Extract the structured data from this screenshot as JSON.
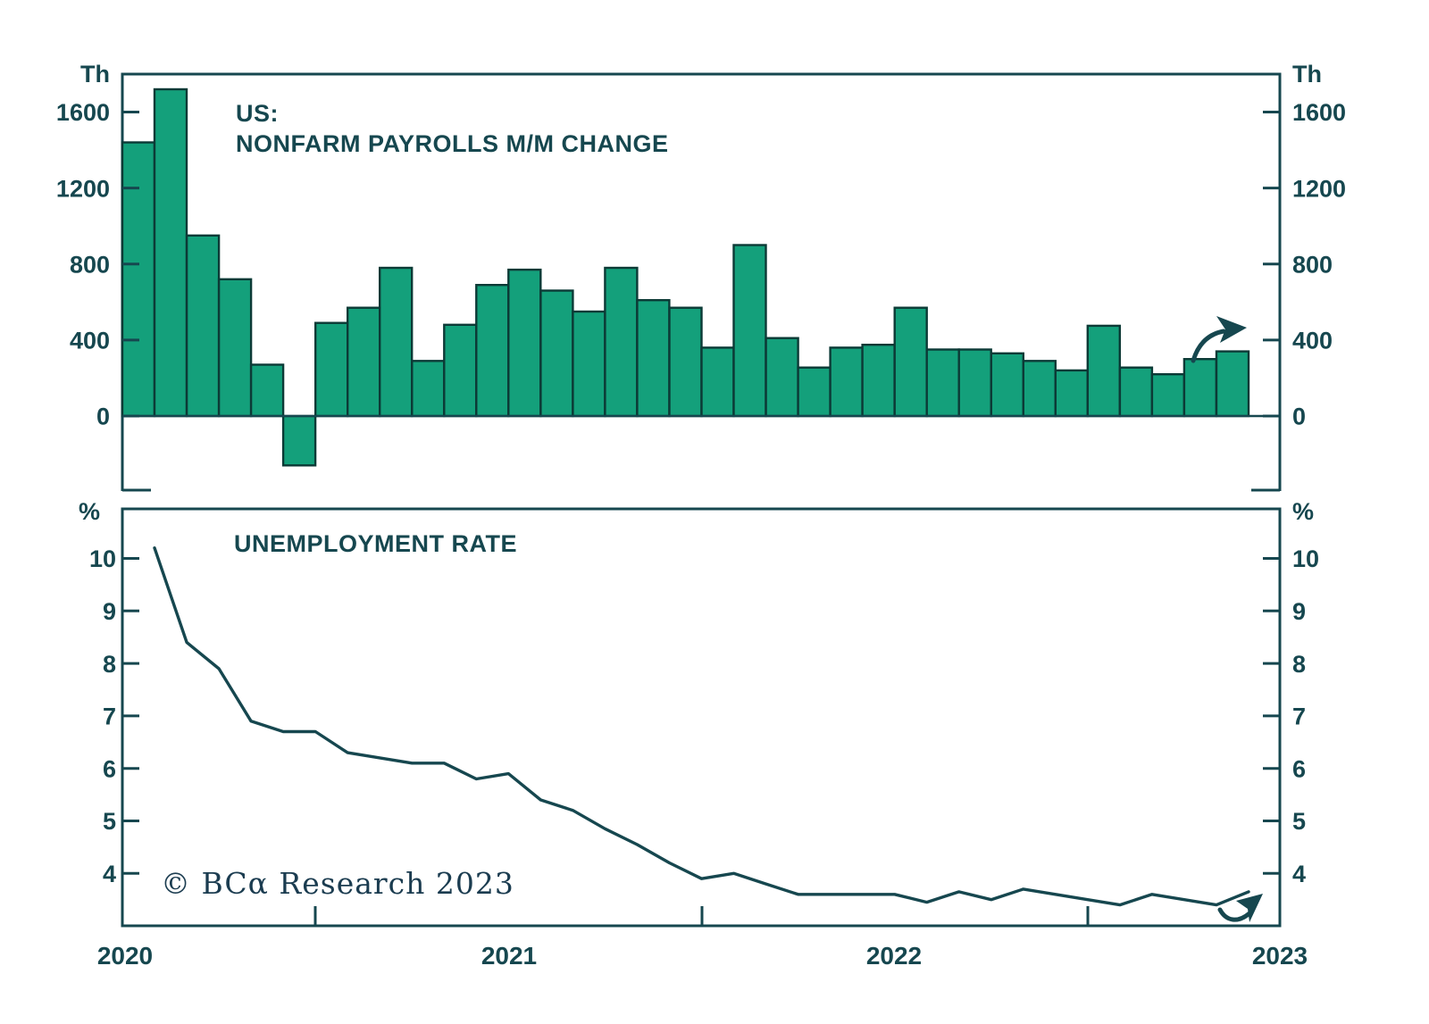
{
  "colors": {
    "background": "#ffffff",
    "bar_fill": "#14a07b",
    "bar_outline": "#0c3a36",
    "axis": "#16474f",
    "text": "#16474f",
    "line": "#16474f",
    "credit_text": "#1b3c50"
  },
  "top_chart": {
    "unit_left": "Th",
    "unit_right": "Th",
    "title_line1": "US:",
    "title_line2": "NONFARM PAYROLLS M/M CHANGE",
    "y_ticks": [
      1600,
      1200,
      800,
      400,
      0
    ]
  },
  "bottom_chart": {
    "unit_left": "%",
    "unit_right": "%",
    "title": "UNEMPLOYMENT RATE",
    "y_ticks": [
      10,
      9,
      8,
      7,
      6,
      5,
      4
    ]
  },
  "x_axis": {
    "year_labels": [
      "2020",
      "2021",
      "2022",
      "2023"
    ]
  },
  "credit": "© BCα Research 2023",
  "chart_data": [
    {
      "type": "bar",
      "title": "US: NONFARM PAYROLLS M/M CHANGE",
      "ylabel": "Th",
      "ylim": [
        -400,
        1800
      ],
      "y_tick_values": [
        0,
        400,
        800,
        1200,
        1600
      ],
      "x_range": [
        "2020",
        "2023"
      ],
      "x_note": "monthly bars, 35 months spanning 2020 to 2023",
      "grid": false,
      "legend": "none",
      "annotation": "curved arrow pointing up-right above the latest bar",
      "values": [
        1440,
        1720,
        950,
        720,
        270,
        -260,
        490,
        570,
        780,
        290,
        480,
        690,
        770,
        660,
        550,
        780,
        610,
        570,
        360,
        900,
        410,
        255,
        360,
        375,
        570,
        350,
        350,
        330,
        290,
        240,
        475,
        255,
        220,
        300,
        340
      ]
    },
    {
      "type": "line",
      "title": "UNEMPLOYMENT RATE",
      "ylabel": "%",
      "ylim": [
        3.2,
        10.8
      ],
      "y_tick_values": [
        4,
        5,
        6,
        7,
        8,
        9,
        10
      ],
      "x_range": [
        "2020",
        "2023"
      ],
      "x_note": "monthly points, 35 months spanning 2020 to 2023; half-year tick marks on bottom axis",
      "grid": false,
      "legend": "none",
      "annotation": "curved arrow pointing up-right at the latest point",
      "values": [
        10.2,
        8.4,
        7.9,
        6.9,
        6.7,
        6.7,
        6.3,
        6.2,
        6.1,
        6.1,
        5.8,
        5.9,
        5.4,
        5.2,
        4.85,
        4.55,
        4.2,
        3.9,
        4.0,
        3.8,
        3.6,
        3.6,
        3.6,
        3.6,
        3.45,
        3.65,
        3.5,
        3.7,
        3.6,
        3.5,
        3.4,
        3.6,
        3.5,
        3.4,
        3.65
      ]
    }
  ]
}
